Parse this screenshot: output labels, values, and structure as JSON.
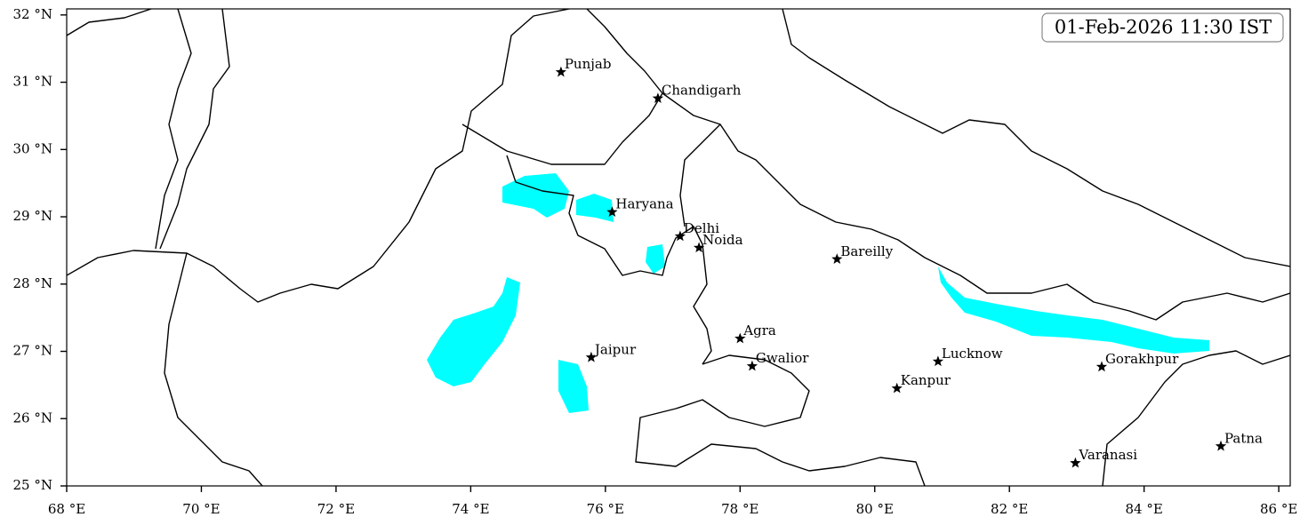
{
  "map": {
    "timestamp": "01-Feb-2026 11:30 IST",
    "xlim": [
      68,
      86.17
    ],
    "ylim": [
      25,
      32.09
    ],
    "xticks": [
      {
        "value": 68,
        "label": "68 °E"
      },
      {
        "value": 70,
        "label": "70 °E"
      },
      {
        "value": 72,
        "label": "72 °E"
      },
      {
        "value": 74,
        "label": "74 °E"
      },
      {
        "value": 76,
        "label": "76 °E"
      },
      {
        "value": 78,
        "label": "78 °E"
      },
      {
        "value": 80,
        "label": "80 °E"
      },
      {
        "value": 82,
        "label": "82 °E"
      },
      {
        "value": 84,
        "label": "84 °E"
      },
      {
        "value": 86,
        "label": "86 °E"
      }
    ],
    "yticks": [
      {
        "value": 25,
        "label": "25 °N"
      },
      {
        "value": 26,
        "label": "26 °N"
      },
      {
        "value": 27,
        "label": "27 °N"
      },
      {
        "value": 28,
        "label": "28 °N"
      },
      {
        "value": 29,
        "label": "29 °N"
      },
      {
        "value": 30,
        "label": "30 °N"
      },
      {
        "value": 31,
        "label": "31 °N"
      },
      {
        "value": 32,
        "label": "32 °N"
      }
    ],
    "cities": [
      {
        "name": "Punjab",
        "lon": 75.34,
        "lat": 31.15
      },
      {
        "name": "Chandigarh",
        "lon": 76.78,
        "lat": 30.76
      },
      {
        "name": "Haryana",
        "lon": 76.1,
        "lat": 29.07
      },
      {
        "name": "Delhi",
        "lon": 77.11,
        "lat": 28.71
      },
      {
        "name": "Noida",
        "lon": 77.39,
        "lat": 28.54
      },
      {
        "name": "Bareilly",
        "lon": 79.44,
        "lat": 28.37
      },
      {
        "name": "Agra",
        "lon": 78.0,
        "lat": 27.19
      },
      {
        "name": "Jaipur",
        "lon": 75.79,
        "lat": 26.91
      },
      {
        "name": "Gwalior",
        "lon": 78.18,
        "lat": 26.78
      },
      {
        "name": "Lucknow",
        "lon": 80.94,
        "lat": 26.85
      },
      {
        "name": "Kanpur",
        "lon": 80.33,
        "lat": 26.45
      },
      {
        "name": "Gorakhpur",
        "lon": 83.37,
        "lat": 26.77
      },
      {
        "name": "Varanasi",
        "lon": 82.98,
        "lat": 25.34
      },
      {
        "name": "Patna",
        "lon": 85.14,
        "lat": 25.59
      }
    ]
  }
}
